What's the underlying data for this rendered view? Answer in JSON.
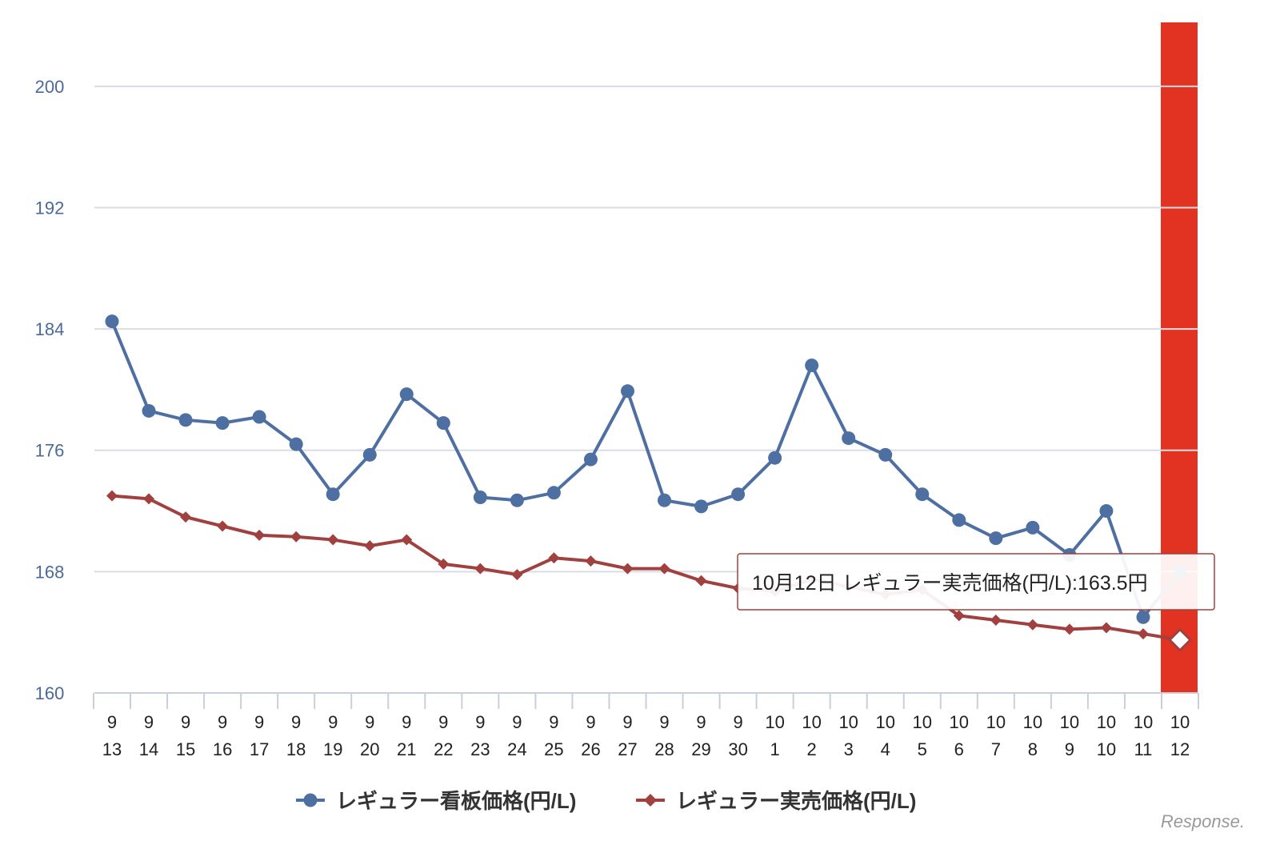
{
  "chart_data": {
    "type": "line",
    "x": [
      {
        "month": "9",
        "day": "13"
      },
      {
        "month": "9",
        "day": "14"
      },
      {
        "month": "9",
        "day": "15"
      },
      {
        "month": "9",
        "day": "16"
      },
      {
        "month": "9",
        "day": "17"
      },
      {
        "month": "9",
        "day": "18"
      },
      {
        "month": "9",
        "day": "19"
      },
      {
        "month": "9",
        "day": "20"
      },
      {
        "month": "9",
        "day": "21"
      },
      {
        "month": "9",
        "day": "22"
      },
      {
        "month": "9",
        "day": "23"
      },
      {
        "month": "9",
        "day": "24"
      },
      {
        "month": "9",
        "day": "25"
      },
      {
        "month": "9",
        "day": "26"
      },
      {
        "month": "9",
        "day": "27"
      },
      {
        "month": "9",
        "day": "28"
      },
      {
        "month": "9",
        "day": "29"
      },
      {
        "month": "9",
        "day": "30"
      },
      {
        "month": "10",
        "day": "1"
      },
      {
        "month": "10",
        "day": "2"
      },
      {
        "month": "10",
        "day": "3"
      },
      {
        "month": "10",
        "day": "4"
      },
      {
        "month": "10",
        "day": "5"
      },
      {
        "month": "10",
        "day": "6"
      },
      {
        "month": "10",
        "day": "7"
      },
      {
        "month": "10",
        "day": "8"
      },
      {
        "month": "10",
        "day": "9"
      },
      {
        "month": "10",
        "day": "10"
      },
      {
        "month": "10",
        "day": "11"
      },
      {
        "month": "10",
        "day": "12"
      }
    ],
    "series": [
      {
        "name": "レギュラー看板価格(円/L)",
        "color": "#4e6fa1",
        "marker": "circle",
        "values": [
          184.5,
          178.6,
          178.0,
          177.8,
          178.2,
          176.4,
          173.1,
          175.7,
          179.7,
          177.8,
          172.9,
          172.7,
          173.2,
          175.4,
          179.9,
          172.7,
          172.3,
          173.1,
          175.5,
          181.6,
          176.8,
          175.7,
          173.1,
          171.4,
          170.2,
          170.9,
          169.1,
          172.0,
          165.0,
          168.0
        ]
      },
      {
        "name": "レギュラー実売価格(円/L)",
        "color": "#a0403f",
        "marker": "diamond",
        "values": [
          173.0,
          172.8,
          171.6,
          171.0,
          170.4,
          170.3,
          170.1,
          169.7,
          170.1,
          168.5,
          168.2,
          167.8,
          168.9,
          168.7,
          168.2,
          168.2,
          167.4,
          166.9,
          166.7,
          167.5,
          167.0,
          166.5,
          166.8,
          165.1,
          164.8,
          164.5,
          164.2,
          164.3,
          163.9,
          163.5
        ]
      }
    ],
    "y_ticks": [
      "200",
      "192",
      "184",
      "176",
      "168",
      "160"
    ],
    "ylim": [
      160,
      204
    ],
    "grid": true,
    "legend_position": "bottom",
    "highlight_index": 29,
    "highlight_color": "#e23322",
    "tooltip": {
      "text": "10月12日 レギュラー実売価格(円/L):163.5円",
      "series_index": 1,
      "point_index": 29
    },
    "watermark": "Response."
  }
}
